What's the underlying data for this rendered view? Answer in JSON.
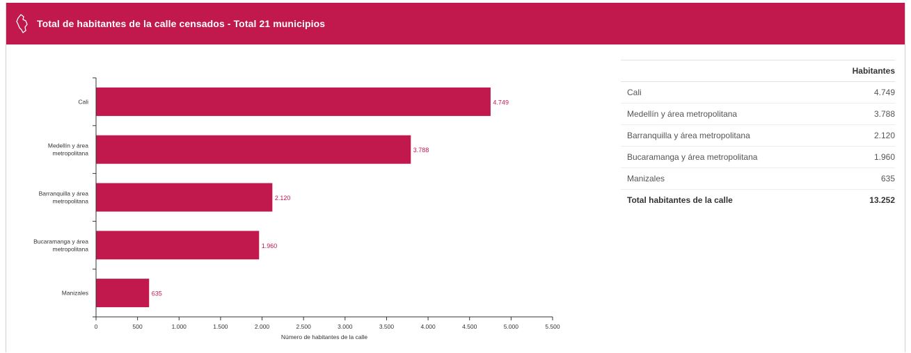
{
  "header": {
    "title": "Total de habitantes de la calle censados - Total 21 municipios",
    "icon": "colombia-map-icon",
    "background_color": "#c1184e"
  },
  "chart_data": {
    "type": "bar",
    "orientation": "horizontal",
    "categories": [
      [
        "Cali"
      ],
      [
        "Medellín y área",
        "metropolitana"
      ],
      [
        "Barranquilla y área",
        "metropolitana"
      ],
      [
        "Bucaramanga y área",
        "metropolitana"
      ],
      [
        "Manizales"
      ]
    ],
    "values": [
      4749,
      3788,
      2120,
      1960,
      635
    ],
    "value_labels": [
      "4.749",
      "3.788",
      "2.120",
      "1.960",
      "635"
    ],
    "xlabel": "Número de habitantes de la calle",
    "xlim": [
      0,
      5500
    ],
    "xticks": [
      0,
      500,
      1000,
      1500,
      2000,
      2500,
      3000,
      3500,
      4000,
      4500,
      5000,
      5500
    ],
    "xtick_labels": [
      "0",
      "500",
      "1.000",
      "1.500",
      "2.000",
      "2.500",
      "3.000",
      "3.500",
      "4.000",
      "4.500",
      "5.000",
      "5.500"
    ],
    "bar_color": "#c1184e",
    "label_color": "#c1184e",
    "grid": false
  },
  "table": {
    "column_header": "Habitantes",
    "rows": [
      {
        "label": "Cali",
        "value": "4.749"
      },
      {
        "label": "Medellín y área metropolitana",
        "value": "3.788"
      },
      {
        "label": "Barranquilla y área metropolitana",
        "value": "2.120"
      },
      {
        "label": "Bucaramanga y área metropolitana",
        "value": "1.960"
      },
      {
        "label": "Manizales",
        "value": "635"
      }
    ],
    "total": {
      "label": "Total habitantes de la calle",
      "value": "13.252"
    }
  }
}
